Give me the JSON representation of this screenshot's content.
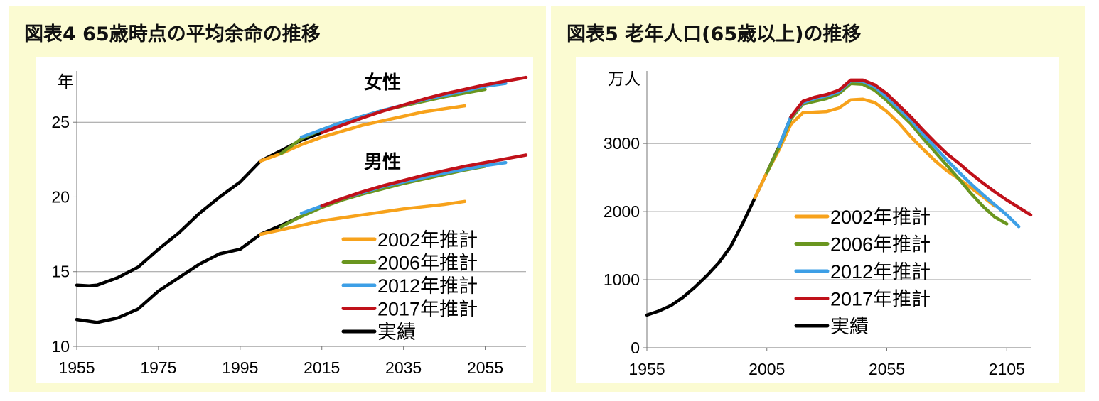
{
  "colors": {
    "panel_bg": "#fbfbd2",
    "plot_bg": "#ffffff",
    "gridline": "#9a9a9a",
    "est2002": "#f7a21b",
    "est2006": "#6a961f",
    "est2012": "#3d9fe6",
    "est2017": "#c0111a",
    "actual": "#000000"
  },
  "chart_data": [
    {
      "type": "line",
      "title": "図表4  65歳時点の平均余命の推移",
      "ylabel": "年",
      "xlim": [
        1955,
        2065
      ],
      "ylim": [
        10,
        29
      ],
      "yticks": [
        10,
        15,
        20,
        25
      ],
      "xticks": [
        1955,
        1975,
        1995,
        2015,
        2035,
        2055
      ],
      "grid": true,
      "legend_position": "bottom-right",
      "annotations": [
        "女性",
        "男性"
      ],
      "series": [
        {
          "name": "2002年推計",
          "color": "est2002",
          "group": "女性",
          "points": [
            [
              2000,
              22.4
            ],
            [
              2005,
              22.9
            ],
            [
              2010,
              23.5
            ],
            [
              2015,
              24.0
            ],
            [
              2020,
              24.4
            ],
            [
              2025,
              24.8
            ],
            [
              2030,
              25.1
            ],
            [
              2035,
              25.4
            ],
            [
              2040,
              25.7
            ],
            [
              2045,
              25.9
            ],
            [
              2050,
              26.1
            ]
          ]
        },
        {
          "name": "2002年推計",
          "color": "est2002",
          "group": "男性",
          "points": [
            [
              2000,
              17.5
            ],
            [
              2005,
              17.8
            ],
            [
              2010,
              18.1
            ],
            [
              2015,
              18.4
            ],
            [
              2020,
              18.6
            ],
            [
              2025,
              18.8
            ],
            [
              2030,
              19.0
            ],
            [
              2035,
              19.2
            ],
            [
              2040,
              19.35
            ],
            [
              2045,
              19.5
            ],
            [
              2050,
              19.7
            ]
          ]
        },
        {
          "name": "2006年推計",
          "color": "est2006",
          "group": "女性",
          "points": [
            [
              2005,
              22.9
            ],
            [
              2010,
              23.9
            ],
            [
              2015,
              24.5
            ],
            [
              2020,
              25.0
            ],
            [
              2025,
              25.4
            ],
            [
              2030,
              25.8
            ],
            [
              2035,
              26.1
            ],
            [
              2040,
              26.4
            ],
            [
              2045,
              26.7
            ],
            [
              2050,
              26.95
            ],
            [
              2055,
              27.2
            ]
          ]
        },
        {
          "name": "2006年推計",
          "color": "est2006",
          "group": "男性",
          "points": [
            [
              2005,
              18.0
            ],
            [
              2010,
              18.7
            ],
            [
              2015,
              19.3
            ],
            [
              2020,
              19.8
            ],
            [
              2025,
              20.2
            ],
            [
              2030,
              20.55
            ],
            [
              2035,
              20.9
            ],
            [
              2040,
              21.2
            ],
            [
              2045,
              21.5
            ],
            [
              2050,
              21.8
            ],
            [
              2055,
              22.05
            ]
          ]
        },
        {
          "name": "2012年推計",
          "color": "est2012",
          "group": "女性",
          "points": [
            [
              2010,
              24.0
            ],
            [
              2015,
              24.5
            ],
            [
              2020,
              25.0
            ],
            [
              2025,
              25.4
            ],
            [
              2030,
              25.8
            ],
            [
              2035,
              26.15
            ],
            [
              2040,
              26.5
            ],
            [
              2045,
              26.8
            ],
            [
              2050,
              27.1
            ],
            [
              2055,
              27.4
            ],
            [
              2060,
              27.6
            ]
          ]
        },
        {
          "name": "2012年推計",
          "color": "est2012",
          "group": "男性",
          "points": [
            [
              2010,
              18.9
            ],
            [
              2015,
              19.4
            ],
            [
              2020,
              19.9
            ],
            [
              2025,
              20.3
            ],
            [
              2030,
              20.7
            ],
            [
              2035,
              21.0
            ],
            [
              2040,
              21.3
            ],
            [
              2045,
              21.6
            ],
            [
              2050,
              21.85
            ],
            [
              2055,
              22.1
            ],
            [
              2060,
              22.3
            ]
          ]
        },
        {
          "name": "2017年推計",
          "color": "est2017",
          "group": "女性",
          "points": [
            [
              2015,
              24.3
            ],
            [
              2020,
              24.8
            ],
            [
              2025,
              25.3
            ],
            [
              2030,
              25.75
            ],
            [
              2035,
              26.15
            ],
            [
              2040,
              26.55
            ],
            [
              2045,
              26.9
            ],
            [
              2050,
              27.2
            ],
            [
              2055,
              27.5
            ],
            [
              2060,
              27.75
            ],
            [
              2065,
              28.0
            ]
          ]
        },
        {
          "name": "2017年推計",
          "color": "est2017",
          "group": "男性",
          "points": [
            [
              2015,
              19.4
            ],
            [
              2020,
              19.9
            ],
            [
              2025,
              20.35
            ],
            [
              2030,
              20.75
            ],
            [
              2035,
              21.1
            ],
            [
              2040,
              21.45
            ],
            [
              2045,
              21.75
            ],
            [
              2050,
              22.05
            ],
            [
              2055,
              22.3
            ],
            [
              2060,
              22.55
            ],
            [
              2065,
              22.8
            ]
          ]
        },
        {
          "name": "実績",
          "color": "actual",
          "group": "女性",
          "points": [
            [
              1955,
              14.1
            ],
            [
              1958,
              14.05
            ],
            [
              1960,
              14.1
            ],
            [
              1965,
              14.6
            ],
            [
              1970,
              15.3
            ],
            [
              1975,
              16.5
            ],
            [
              1980,
              17.6
            ],
            [
              1985,
              18.9
            ],
            [
              1990,
              20.0
            ],
            [
              1995,
              21.0
            ],
            [
              2000,
              22.4
            ],
            [
              2005,
              23.1
            ],
            [
              2010,
              23.8
            ],
            [
              2015,
              24.3
            ]
          ]
        },
        {
          "name": "実績",
          "color": "actual",
          "group": "男性",
          "points": [
            [
              1955,
              11.8
            ],
            [
              1960,
              11.6
            ],
            [
              1965,
              11.9
            ],
            [
              1970,
              12.5
            ],
            [
              1975,
              13.7
            ],
            [
              1980,
              14.6
            ],
            [
              1985,
              15.5
            ],
            [
              1990,
              16.2
            ],
            [
              1995,
              16.5
            ],
            [
              2000,
              17.5
            ],
            [
              2005,
              18.1
            ],
            [
              2010,
              18.7
            ],
            [
              2015,
              19.4
            ]
          ]
        }
      ]
    },
    {
      "type": "line",
      "title": "図表5  老年人口(65歳以上)の推移",
      "ylabel": "万人",
      "xlim": [
        1955,
        2115
      ],
      "ylim": [
        0,
        3950
      ],
      "yticks": [
        0,
        1000,
        2000,
        3000
      ],
      "xticks": [
        1955,
        2005,
        2055,
        2105
      ],
      "grid": true,
      "legend_position": "center",
      "series": [
        {
          "name": "2002年推計",
          "color": "est2002",
          "points": [
            [
              2000,
              2200
            ],
            [
              2005,
              2570
            ],
            [
              2010,
              2900
            ],
            [
              2015,
              3280
            ],
            [
              2020,
              3450
            ],
            [
              2025,
              3460
            ],
            [
              2030,
              3470
            ],
            [
              2035,
              3520
            ],
            [
              2040,
              3640
            ],
            [
              2045,
              3650
            ],
            [
              2050,
              3600
            ],
            [
              2055,
              3470
            ],
            [
              2060,
              3300
            ],
            [
              2065,
              3100
            ],
            [
              2070,
              2920
            ],
            [
              2075,
              2750
            ],
            [
              2080,
              2600
            ],
            [
              2085,
              2480
            ],
            [
              2090,
              2350
            ],
            [
              2095,
              2220
            ],
            [
              2100,
              2080
            ]
          ]
        },
        {
          "name": "2006年推計",
          "color": "est2006",
          "points": [
            [
              2005,
              2570
            ],
            [
              2010,
              2940
            ],
            [
              2015,
              3360
            ],
            [
              2020,
              3580
            ],
            [
              2025,
              3620
            ],
            [
              2030,
              3660
            ],
            [
              2035,
              3730
            ],
            [
              2040,
              3880
            ],
            [
              2045,
              3870
            ],
            [
              2050,
              3780
            ],
            [
              2055,
              3630
            ],
            [
              2060,
              3460
            ],
            [
              2065,
              3290
            ],
            [
              2070,
              3080
            ],
            [
              2075,
              2880
            ],
            [
              2080,
              2680
            ],
            [
              2085,
              2480
            ],
            [
              2090,
              2270
            ],
            [
              2095,
              2080
            ],
            [
              2100,
              1920
            ],
            [
              2105,
              1820
            ]
          ]
        },
        {
          "name": "2012年推計",
          "color": "est2012",
          "points": [
            [
              2010,
              2950
            ],
            [
              2015,
              3390
            ],
            [
              2020,
              3600
            ],
            [
              2025,
              3660
            ],
            [
              2030,
              3700
            ],
            [
              2035,
              3760
            ],
            [
              2040,
              3920
            ],
            [
              2045,
              3910
            ],
            [
              2050,
              3830
            ],
            [
              2055,
              3680
            ],
            [
              2060,
              3510
            ],
            [
              2065,
              3340
            ],
            [
              2070,
              3140
            ],
            [
              2075,
              2950
            ],
            [
              2080,
              2760
            ],
            [
              2085,
              2580
            ],
            [
              2090,
              2410
            ],
            [
              2095,
              2250
            ],
            [
              2100,
              2100
            ],
            [
              2105,
              1950
            ],
            [
              2110,
              1780
            ]
          ]
        },
        {
          "name": "2017年推計",
          "color": "est2017",
          "points": [
            [
              2015,
              3390
            ],
            [
              2020,
              3620
            ],
            [
              2025,
              3680
            ],
            [
              2030,
              3720
            ],
            [
              2035,
              3780
            ],
            [
              2040,
              3930
            ],
            [
              2045,
              3930
            ],
            [
              2050,
              3860
            ],
            [
              2055,
              3730
            ],
            [
              2060,
              3560
            ],
            [
              2065,
              3390
            ],
            [
              2070,
              3200
            ],
            [
              2075,
              3020
            ],
            [
              2080,
              2850
            ],
            [
              2085,
              2710
            ],
            [
              2090,
              2560
            ],
            [
              2095,
              2420
            ],
            [
              2100,
              2290
            ],
            [
              2105,
              2170
            ],
            [
              2110,
              2060
            ],
            [
              2115,
              1950
            ]
          ]
        },
        {
          "name": "実績",
          "color": "actual",
          "points": [
            [
              1955,
              480
            ],
            [
              1960,
              540
            ],
            [
              1965,
              620
            ],
            [
              1970,
              740
            ],
            [
              1975,
              890
            ],
            [
              1980,
              1060
            ],
            [
              1985,
              1250
            ],
            [
              1990,
              1490
            ],
            [
              1995,
              1830
            ],
            [
              2000,
              2200
            ],
            [
              2005,
              2570
            ],
            [
              2010,
              2950
            ],
            [
              2015,
              3390
            ]
          ]
        }
      ]
    }
  ]
}
